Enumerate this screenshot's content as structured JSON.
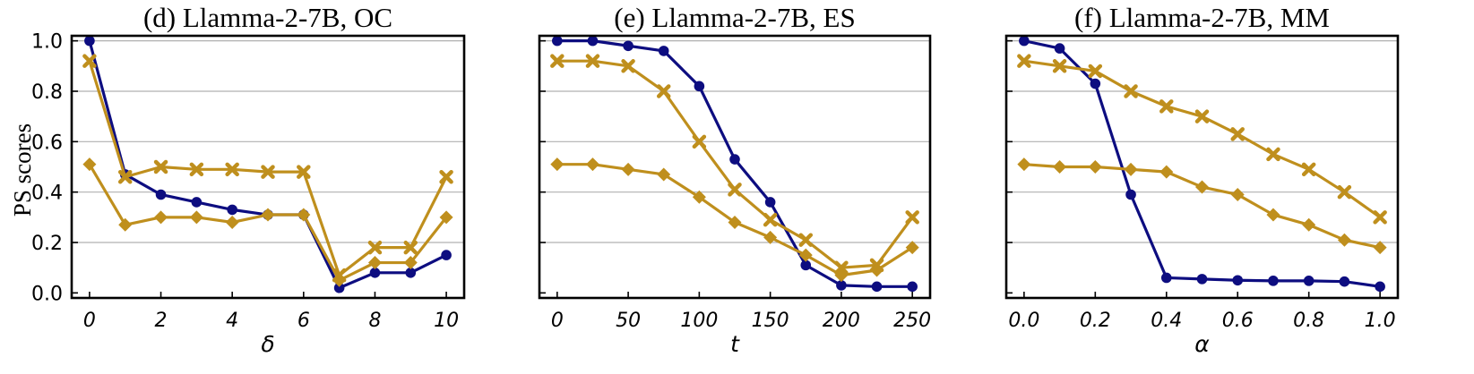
{
  "y_axis_label": "PS scores",
  "colors": {
    "navy": "#0d0d80",
    "gold": "#bf8f1d"
  },
  "chart_data": [
    {
      "type": "line",
      "title": "(d) Llamma-2-7B, OC",
      "xlabel": "δ",
      "ylabel": "PS scores",
      "xlim": [
        -0.5,
        10.5
      ],
      "ylim": [
        -0.02,
        1.02
      ],
      "xticks": [
        0,
        2,
        4,
        6,
        8,
        10
      ],
      "xtick_labels": [
        "0",
        "2",
        "4",
        "6",
        "8",
        "10"
      ],
      "yticks": [
        0.0,
        0.2,
        0.4,
        0.6,
        0.8,
        1.0
      ],
      "ytick_labels": [
        "0.0",
        "0.2",
        "0.4",
        "0.6",
        "0.8",
        "1.0"
      ],
      "grid": "y",
      "x": [
        0,
        1,
        2,
        3,
        4,
        5,
        6,
        7,
        8,
        9,
        10
      ],
      "series": [
        {
          "color": "#0d0d80",
          "marker": "circle",
          "values": [
            1.0,
            0.47,
            0.39,
            0.36,
            0.33,
            0.31,
            0.31,
            0.02,
            0.08,
            0.08,
            0.15
          ]
        },
        {
          "color": "#bf8f1d",
          "marker": "x",
          "values": [
            0.92,
            0.46,
            0.5,
            0.49,
            0.49,
            0.48,
            0.48,
            0.07,
            0.18,
            0.18,
            0.46
          ]
        },
        {
          "color": "#bf8f1d",
          "marker": "diamond",
          "values": [
            0.51,
            0.27,
            0.3,
            0.3,
            0.28,
            0.31,
            0.31,
            0.05,
            0.12,
            0.12,
            0.3
          ]
        }
      ]
    },
    {
      "type": "line",
      "title": "(e) Llamma-2-7B, ES",
      "xlabel": "t",
      "ylabel": "",
      "xlim": [
        -12.5,
        262.5
      ],
      "ylim": [
        -0.02,
        1.02
      ],
      "xticks": [
        0,
        50,
        100,
        150,
        200,
        250
      ],
      "xtick_labels": [
        "0",
        "50",
        "100",
        "150",
        "200",
        "250"
      ],
      "yticks": [
        0.0,
        0.2,
        0.4,
        0.6,
        0.8,
        1.0
      ],
      "ytick_labels": [],
      "grid": "y",
      "x": [
        0,
        25,
        50,
        75,
        100,
        125,
        150,
        175,
        200,
        225,
        250
      ],
      "series": [
        {
          "color": "#0d0d80",
          "marker": "circle",
          "values": [
            1.0,
            1.0,
            0.98,
            0.96,
            0.82,
            0.53,
            0.36,
            0.11,
            0.03,
            0.025,
            0.025
          ]
        },
        {
          "color": "#bf8f1d",
          "marker": "x",
          "values": [
            0.92,
            0.92,
            0.9,
            0.8,
            0.6,
            0.41,
            0.29,
            0.21,
            0.1,
            0.11,
            0.3
          ]
        },
        {
          "color": "#bf8f1d",
          "marker": "diamond",
          "values": [
            0.51,
            0.51,
            0.49,
            0.47,
            0.38,
            0.28,
            0.22,
            0.15,
            0.07,
            0.09,
            0.18
          ]
        }
      ]
    },
    {
      "type": "line",
      "title": "(f) Llamma-2-7B, MM",
      "xlabel": "α",
      "ylabel": "",
      "xlim": [
        -0.05,
        1.05
      ],
      "ylim": [
        -0.02,
        1.02
      ],
      "xticks": [
        0.0,
        0.2,
        0.4,
        0.6,
        0.8,
        1.0
      ],
      "xtick_labels": [
        "0.0",
        "0.2",
        "0.4",
        "0.6",
        "0.8",
        "1.0"
      ],
      "yticks": [
        0.0,
        0.2,
        0.4,
        0.6,
        0.8,
        1.0
      ],
      "ytick_labels": [],
      "grid": "y",
      "x": [
        0.0,
        0.1,
        0.2,
        0.3,
        0.4,
        0.5,
        0.6,
        0.7,
        0.8,
        0.9,
        1.0
      ],
      "series": [
        {
          "color": "#0d0d80",
          "marker": "circle",
          "values": [
            1.0,
            0.97,
            0.83,
            0.39,
            0.06,
            0.055,
            0.05,
            0.048,
            0.048,
            0.045,
            0.025
          ]
        },
        {
          "color": "#bf8f1d",
          "marker": "x",
          "values": [
            0.92,
            0.9,
            0.88,
            0.8,
            0.74,
            0.7,
            0.63,
            0.55,
            0.49,
            0.4,
            0.3
          ]
        },
        {
          "color": "#bf8f1d",
          "marker": "diamond",
          "values": [
            0.51,
            0.5,
            0.5,
            0.49,
            0.48,
            0.42,
            0.39,
            0.31,
            0.27,
            0.21,
            0.18
          ]
        }
      ]
    }
  ]
}
